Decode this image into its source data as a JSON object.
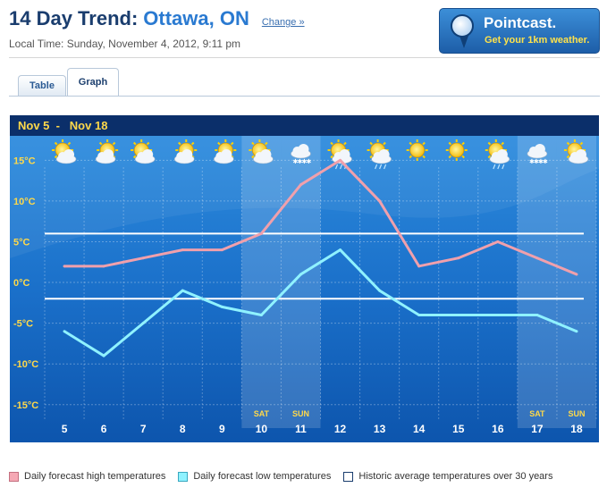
{
  "header": {
    "title": "14 Day Trend:",
    "city": "Ottawa, ON",
    "change_link": "Change »",
    "local_time": "Local Time: Sunday, November 4, 2012, 9:11 pm"
  },
  "promo": {
    "title": "Pointcast.",
    "subtitle": "Get your 1km weather."
  },
  "tabs": [
    {
      "label": "Table",
      "active": false
    },
    {
      "label": "Graph",
      "active": true
    }
  ],
  "chart_data": {
    "type": "line",
    "date_range": "Nov 5  -   Nov 18",
    "x": [
      "5",
      "6",
      "7",
      "8",
      "9",
      "10",
      "11",
      "12",
      "13",
      "14",
      "15",
      "16",
      "17",
      "18"
    ],
    "weekend_labels": [
      "",
      "",
      "",
      "",
      "",
      "SAT",
      "SUN",
      "",
      "",
      "",
      "",
      "",
      "SAT",
      "SUN"
    ],
    "weather_icons": [
      "sun-cloud-icon",
      "cloud-sun-icon",
      "sun-cloud-icon",
      "cloud-sun-icon",
      "cloud-sun-icon",
      "sun-cloud-icon",
      "snow-cloud-icon",
      "sun-rain-icon",
      "sun-rain-icon",
      "sun-icon",
      "sun-icon",
      "sun-rain-icon",
      "snow-cloud-icon",
      "sun-cloud-icon"
    ],
    "y_ticks": [
      "15°C",
      "10°C",
      "5°C",
      "0°C",
      "-5°C",
      "-10°C",
      "-15°C"
    ],
    "y_tick_values": [
      15,
      10,
      5,
      0,
      -5,
      -10,
      -15
    ],
    "ylim": [
      -17,
      18
    ],
    "series": [
      {
        "name": "Daily forecast high temperatures",
        "color": "#f0a0ac",
        "values": [
          2,
          2,
          3,
          4,
          4,
          6,
          12,
          15,
          10,
          2,
          3,
          5,
          3,
          1
        ]
      },
      {
        "name": "Daily forecast low temperatures",
        "color": "#8ff2ff",
        "values": [
          -6,
          -9,
          -5,
          -1,
          -3,
          -4,
          1,
          4,
          -1,
          -4,
          -4,
          -4,
          -4,
          -6
        ]
      }
    ],
    "historic_average": {
      "name": "Historic average temperatures over 30 years",
      "color": "#ffffff",
      "values": [
        6,
        -2
      ]
    }
  },
  "legend": {
    "high": "Daily forecast high temperatures",
    "low": "Daily forecast low temperatures",
    "historic": "Historic average temperatures over 30 years",
    "high_color": "#f5a8b4",
    "low_color": "#8ff2ff",
    "historic_color": "#ffffff"
  }
}
